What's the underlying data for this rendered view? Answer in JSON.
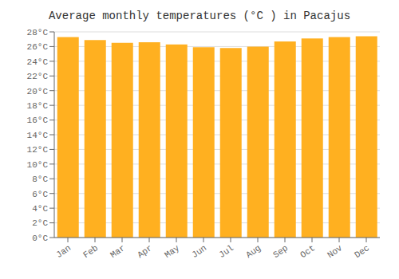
{
  "chart_data": {
    "type": "bar",
    "title": "Average monthly temperatures (°C ) in Pacajus",
    "categories": [
      "Jan",
      "Feb",
      "Mar",
      "Apr",
      "May",
      "Jun",
      "Jul",
      "Aug",
      "Sep",
      "Oct",
      "Nov",
      "Dec"
    ],
    "values": [
      27.3,
      26.9,
      26.5,
      26.6,
      26.3,
      25.9,
      25.8,
      26.0,
      26.7,
      27.1,
      27.3,
      27.4
    ],
    "color": "#FFB020",
    "ylim": [
      0,
      28
    ],
    "yticks": [
      {
        "value": 0,
        "label": "0°C"
      },
      {
        "value": 2,
        "label": "2°C"
      },
      {
        "value": 4,
        "label": "4°C"
      },
      {
        "value": 6,
        "label": "6°C"
      },
      {
        "value": 8,
        "label": "8°C"
      },
      {
        "value": 10,
        "label": "10°C"
      },
      {
        "value": 12,
        "label": "12°C"
      },
      {
        "value": 14,
        "label": "14°C"
      },
      {
        "value": 16,
        "label": "16°C"
      },
      {
        "value": 18,
        "label": "18°C"
      },
      {
        "value": 20,
        "label": "20°C"
      },
      {
        "value": 22,
        "label": "22°C"
      },
      {
        "value": 24,
        "label": "24°C"
      },
      {
        "value": 26,
        "label": "26°C"
      },
      {
        "value": 28,
        "label": "28°C"
      }
    ],
    "grid": true
  }
}
